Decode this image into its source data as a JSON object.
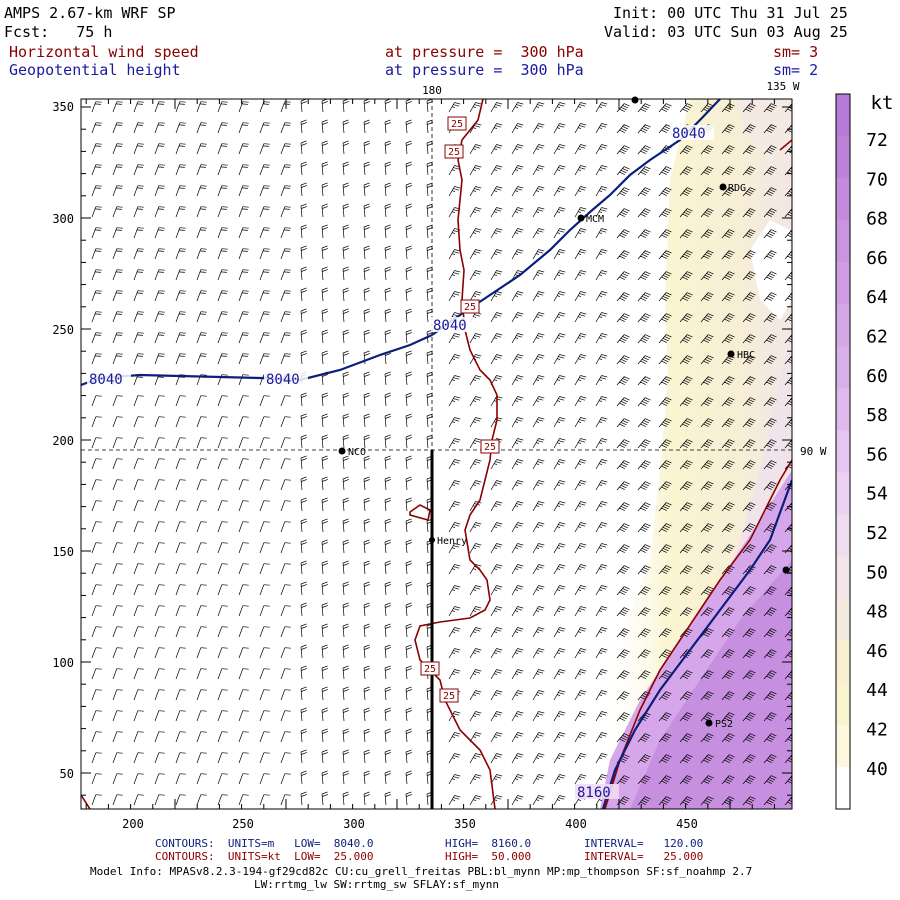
{
  "header": {
    "model": "AMPS 2.67-km WRF SP",
    "forecast": "Fcst:   75 h",
    "init": "Init: 00 UTC Thu 31 Jul 25",
    "valid": "Valid: 03 UTC Sun 03 Aug 25",
    "field1": "Horizontal wind speed",
    "field1_level": "at pressure =  300 hPa",
    "field1_sm": "sm= 3",
    "field2": "Geopotential height",
    "field2_level": "at pressure =  300 hPa",
    "field2_sm": "sm= 2"
  },
  "map": {
    "x_ticks": [
      "200",
      "250",
      "300",
      "350",
      "400",
      "450"
    ],
    "y_ticks": [
      "350",
      "300",
      "250",
      "200",
      "150",
      "100",
      "50"
    ],
    "lon_labels": {
      "top_180": "180",
      "top_135w": "135 W",
      "right_90w": "90 W"
    },
    "stations": [
      {
        "id": "LYT",
        "label": ""
      },
      {
        "id": "MCM",
        "label": "MCM"
      },
      {
        "id": "RDG",
        "label": "RDG"
      },
      {
        "id": "HBC",
        "label": "HBC"
      },
      {
        "id": "NCO",
        "label": "NCO"
      },
      {
        "id": "HENRY",
        "label": "Henry"
      },
      {
        "id": "PS2",
        "label": "PS2"
      },
      {
        "id": "EDGE",
        "label": ""
      }
    ],
    "height_labels": [
      "8040",
      "8040",
      "8040",
      "8040",
      "8160"
    ],
    "speed_labels": [
      "25",
      "25",
      "25",
      "25",
      "25",
      "25"
    ],
    "colors": {
      "height_contour": "#0b1f7a",
      "speed_contour": "#8b0000",
      "grid": "#000000"
    }
  },
  "colorbar": {
    "unit": "kt",
    "levels": [
      "72",
      "70",
      "68",
      "66",
      "64",
      "62",
      "60",
      "58",
      "56",
      "54",
      "52",
      "50",
      "48",
      "46",
      "44",
      "42",
      "40"
    ],
    "colors": [
      "#b77ad6",
      "#bd83d9",
      "#c38cdc",
      "#c995df",
      "#cf9ee2",
      "#d4a8e6",
      "#d9b1e9",
      "#dfbbed",
      "#e5c6f0",
      "#ebd2f2",
      "#efdcf0",
      "#f2e4e8",
      "#f4eadd",
      "#f7efcf",
      "#f9f4cf",
      "#fbf8dd",
      "#ffffff"
    ]
  },
  "footer": {
    "line1_label": "CONTOURS:  UNITS=m   LOW=  8040.0",
    "line1_high": "HIGH=  8160.0",
    "line1_int": "INTERVAL=   120.00",
    "line2_label": "CONTOURS:  UNITS=kt  LOW=  25.000",
    "line2_high": "HIGH=  50.000",
    "line2_int": "INTERVAL=   25.000",
    "model_info": "Model Info: MPASv8.2.3-194-gf29cd82c CU:cu_grell_freitas PBL:bl_mynn MP:mp_thompson SF:sf_noahmp 2.7",
    "model_info2": "LW:rrtmg_lw SW:rrtmg_sw SFLAY:sf_mynn"
  }
}
